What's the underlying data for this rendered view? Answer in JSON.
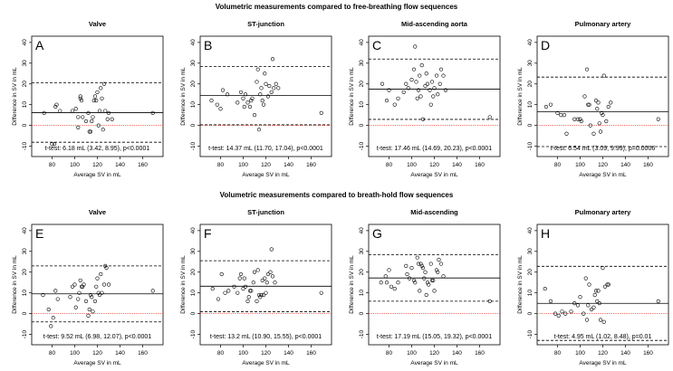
{
  "sections": [
    {
      "title": "Volumetric measurements compared to free-breathing flow sequences"
    },
    {
      "title": "Volumetric measurements compared to breath-hold flow sequences"
    }
  ],
  "chart_data": [
    {
      "type": "scatter",
      "panel": "A",
      "title": "Valve",
      "xlabel": "Average SV in mL",
      "ylabel": "Difference in SV in mL",
      "xlim": [
        62,
        178
      ],
      "ylim": [
        -15,
        43
      ],
      "xticks": [
        80,
        100,
        120,
        140,
        160
      ],
      "yticks": [
        -10,
        0,
        10,
        20,
        30,
        40
      ],
      "mean": 6.18,
      "upper_loa": 20.5,
      "lower_loa": -8.1,
      "zero_line": 0,
      "stat_text": "t-test: 6.18 mL (3.42, 8.95), p<0.0001",
      "points": [
        [
          73,
          6
        ],
        [
          80,
          -9
        ],
        [
          82,
          -9
        ],
        [
          83,
          9
        ],
        [
          84,
          10
        ],
        [
          87,
          7
        ],
        [
          98,
          7
        ],
        [
          101,
          8
        ],
        [
          103,
          4
        ],
        [
          103,
          -1
        ],
        [
          105,
          13
        ],
        [
          105,
          14
        ],
        [
          106,
          12
        ],
        [
          107,
          4
        ],
        [
          110,
          2
        ],
        [
          112,
          6
        ],
        [
          113,
          -3
        ],
        [
          114,
          -3
        ],
        [
          115,
          2
        ],
        [
          116,
          4
        ],
        [
          117,
          12
        ],
        [
          118,
          14
        ],
        [
          119,
          12
        ],
        [
          120,
          16
        ],
        [
          121,
          0
        ],
        [
          122,
          7
        ],
        [
          123,
          18
        ],
        [
          124,
          13
        ],
        [
          125,
          -2
        ],
        [
          126,
          20
        ],
        [
          127,
          7
        ],
        [
          129,
          3
        ],
        [
          130,
          6
        ],
        [
          133,
          3
        ],
        [
          169,
          6
        ]
      ]
    },
    {
      "type": "scatter",
      "panel": "B",
      "title": "ST-junction",
      "xlabel": "Average SV in mL",
      "ylabel": "Difference in SV in mL",
      "xlim": [
        62,
        178
      ],
      "ylim": [
        -15,
        43
      ],
      "xticks": [
        80,
        100,
        120,
        140,
        160
      ],
      "yticks": [
        -10,
        0,
        10,
        20,
        30,
        40
      ],
      "mean": 14.37,
      "upper_loa": 28.4,
      "lower_loa": 0.3,
      "zero_line": 0,
      "stat_text": "t-test: 14.37 mL (11.70, 17.04), p<0.0001",
      "points": [
        [
          72,
          12
        ],
        [
          77,
          10
        ],
        [
          80,
          8
        ],
        [
          82,
          17
        ],
        [
          86,
          15
        ],
        [
          95,
          11
        ],
        [
          98,
          16
        ],
        [
          100,
          13
        ],
        [
          101,
          9
        ],
        [
          102,
          15
        ],
        [
          104,
          11
        ],
        [
          106,
          9
        ],
        [
          107,
          12
        ],
        [
          108,
          13
        ],
        [
          110,
          5
        ],
        [
          112,
          21
        ],
        [
          113,
          27
        ],
        [
          114,
          -2
        ],
        [
          115,
          15
        ],
        [
          116,
          18
        ],
        [
          117,
          12
        ],
        [
          118,
          10
        ],
        [
          119,
          25
        ],
        [
          120,
          20
        ],
        [
          122,
          14
        ],
        [
          123,
          19
        ],
        [
          125,
          16
        ],
        [
          126,
          32
        ],
        [
          127,
          18
        ],
        [
          129,
          20
        ],
        [
          131,
          18
        ],
        [
          169,
          6
        ]
      ]
    },
    {
      "type": "scatter",
      "panel": "C",
      "title": "Mid-ascending aorta",
      "xlabel": "Average SV in mL",
      "ylabel": "Difference in SV in mL",
      "xlim": [
        62,
        178
      ],
      "ylim": [
        -15,
        43
      ],
      "xticks": [
        80,
        100,
        120,
        140,
        160
      ],
      "yticks": [
        -10,
        0,
        10,
        20,
        30,
        40
      ],
      "mean": 17.46,
      "upper_loa": 32,
      "lower_loa": 2.9,
      "zero_line": 0,
      "stat_text": "t-test: 17.46 mL (14.69, 20.23), p<0.0001",
      "points": [
        [
          74,
          20
        ],
        [
          78,
          12
        ],
        [
          80,
          17
        ],
        [
          85,
          10
        ],
        [
          88,
          13
        ],
        [
          93,
          16
        ],
        [
          95,
          20
        ],
        [
          97,
          18
        ],
        [
          100,
          22
        ],
        [
          102,
          27
        ],
        [
          103,
          38
        ],
        [
          104,
          21
        ],
        [
          105,
          13
        ],
        [
          106,
          17
        ],
        [
          107,
          24
        ],
        [
          108,
          14
        ],
        [
          109,
          29
        ],
        [
          110,
          3
        ],
        [
          112,
          19
        ],
        [
          113,
          25
        ],
        [
          114,
          20
        ],
        [
          116,
          17
        ],
        [
          117,
          10
        ],
        [
          118,
          21
        ],
        [
          119,
          14
        ],
        [
          120,
          18
        ],
        [
          122,
          24
        ],
        [
          123,
          15
        ],
        [
          125,
          20
        ],
        [
          126,
          27
        ],
        [
          128,
          24
        ],
        [
          130,
          17
        ],
        [
          169,
          4
        ]
      ]
    },
    {
      "type": "scatter",
      "panel": "D",
      "title": "Pulmonary artery",
      "xlabel": "Average SV in mL",
      "ylabel": "Difference in SV in mL",
      "xlim": [
        62,
        178
      ],
      "ylim": [
        -15,
        43
      ],
      "xticks": [
        80,
        100,
        120,
        140,
        160
      ],
      "yticks": [
        -10,
        0,
        10,
        20,
        30,
        40
      ],
      "mean": 6.54,
      "upper_loa": 23.3,
      "lower_loa": -10.2,
      "zero_line": 0,
      "stat_text": "t-test: 6.54 mL (3.09, 9.99), p=0.0006",
      "points": [
        [
          70,
          9
        ],
        [
          74,
          10
        ],
        [
          80,
          6
        ],
        [
          83,
          5
        ],
        [
          86,
          5
        ],
        [
          88,
          -4
        ],
        [
          95,
          3
        ],
        [
          98,
          3
        ],
        [
          100,
          3
        ],
        [
          101,
          2
        ],
        [
          104,
          14
        ],
        [
          106,
          27
        ],
        [
          107,
          10
        ],
        [
          108,
          10
        ],
        [
          109,
          0
        ],
        [
          112,
          -4
        ],
        [
          114,
          12
        ],
        [
          115,
          8
        ],
        [
          116,
          11
        ],
        [
          117,
          1
        ],
        [
          118,
          -3
        ],
        [
          119,
          6
        ],
        [
          120,
          5
        ],
        [
          121,
          24
        ],
        [
          123,
          2
        ],
        [
          125,
          9
        ],
        [
          127,
          11
        ],
        [
          169,
          3
        ]
      ]
    },
    {
      "type": "scatter",
      "panel": "E",
      "title": "Valve",
      "xlabel": "Average SV in mL",
      "ylabel": "Difference in SV in mL",
      "xlim": [
        62,
        178
      ],
      "ylim": [
        -15,
        43
      ],
      "xticks": [
        80,
        100,
        120,
        140,
        160
      ],
      "yticks": [
        -10,
        0,
        10,
        20,
        30,
        40
      ],
      "mean": 9.52,
      "upper_loa": 23,
      "lower_loa": -4,
      "zero_line": 0,
      "stat_text": "t-test: 9.52 mL (6.98, 12.07), p<0.0001",
      "points": [
        [
          72,
          9
        ],
        [
          77,
          2
        ],
        [
          79,
          -6
        ],
        [
          81,
          -2
        ],
        [
          83,
          11
        ],
        [
          85,
          7
        ],
        [
          96,
          8
        ],
        [
          98,
          13
        ],
        [
          100,
          14
        ],
        [
          101,
          3
        ],
        [
          103,
          7
        ],
        [
          104,
          10
        ],
        [
          105,
          16
        ],
        [
          106,
          13
        ],
        [
          107,
          13
        ],
        [
          108,
          14
        ],
        [
          110,
          6
        ],
        [
          112,
          -1
        ],
        [
          113,
          2
        ],
        [
          114,
          9
        ],
        [
          115,
          8
        ],
        [
          116,
          1
        ],
        [
          118,
          6
        ],
        [
          119,
          13
        ],
        [
          120,
          17
        ],
        [
          121,
          10
        ],
        [
          122,
          9
        ],
        [
          123,
          19
        ],
        [
          124,
          10
        ],
        [
          126,
          14
        ],
        [
          127,
          23
        ],
        [
          128,
          22
        ],
        [
          130,
          14
        ],
        [
          169,
          11
        ]
      ]
    },
    {
      "type": "scatter",
      "panel": "F",
      "title": "ST-junction",
      "xlabel": "Average SV in mL",
      "ylabel": "Difference in SV in mL",
      "xlim": [
        62,
        178
      ],
      "ylim": [
        -15,
        43
      ],
      "xticks": [
        80,
        100,
        120,
        140,
        160
      ],
      "yticks": [
        -10,
        0,
        10,
        20,
        30,
        40
      ],
      "mean": 13.2,
      "upper_loa": 25.5,
      "lower_loa": 0.9,
      "zero_line": 0,
      "stat_text": "t-test: 13.2 mL (10.90, 15.55), p<0.0001",
      "points": [
        [
          73,
          12
        ],
        [
          78,
          7
        ],
        [
          81,
          19
        ],
        [
          84,
          10
        ],
        [
          87,
          11
        ],
        [
          92,
          13
        ],
        [
          95,
          10
        ],
        [
          97,
          17
        ],
        [
          98,
          19
        ],
        [
          100,
          12
        ],
        [
          101,
          17
        ],
        [
          102,
          13
        ],
        [
          104,
          6
        ],
        [
          105,
          8
        ],
        [
          106,
          11
        ],
        [
          107,
          11
        ],
        [
          109,
          15
        ],
        [
          110,
          20
        ],
        [
          112,
          6
        ],
        [
          113,
          21
        ],
        [
          114,
          9
        ],
        [
          115,
          8
        ],
        [
          116,
          9
        ],
        [
          117,
          16
        ],
        [
          118,
          9
        ],
        [
          119,
          17
        ],
        [
          120,
          10
        ],
        [
          121,
          15
        ],
        [
          122,
          19
        ],
        [
          124,
          20
        ],
        [
          125,
          31
        ],
        [
          126,
          18
        ],
        [
          128,
          15
        ],
        [
          169,
          10
        ]
      ]
    },
    {
      "type": "scatter",
      "panel": "G",
      "title": "Mid-ascending",
      "xlabel": "Average SV in mL",
      "ylabel": "Difference in SV in mL",
      "xlim": [
        62,
        178
      ],
      "ylim": [
        -15,
        43
      ],
      "xticks": [
        80,
        100,
        120,
        140,
        160
      ],
      "yticks": [
        -10,
        0,
        10,
        20,
        30,
        40
      ],
      "mean": 17.19,
      "upper_loa": 28.4,
      "lower_loa": 6,
      "zero_line": 0,
      "stat_text": "t-test: 17.19 mL (15.05, 19.32), p<0.0001",
      "points": [
        [
          73,
          15
        ],
        [
          77,
          18
        ],
        [
          78,
          15
        ],
        [
          80,
          21
        ],
        [
          82,
          13
        ],
        [
          85,
          12
        ],
        [
          88,
          15
        ],
        [
          95,
          23
        ],
        [
          96,
          19
        ],
        [
          98,
          17
        ],
        [
          100,
          22
        ],
        [
          102,
          16
        ],
        [
          103,
          15
        ],
        [
          105,
          27
        ],
        [
          106,
          24
        ],
        [
          107,
          11
        ],
        [
          108,
          24
        ],
        [
          109,
          23
        ],
        [
          110,
          22
        ],
        [
          111,
          17
        ],
        [
          112,
          20
        ],
        [
          113,
          9
        ],
        [
          114,
          15
        ],
        [
          115,
          14
        ],
        [
          117,
          24
        ],
        [
          118,
          16
        ],
        [
          119,
          16
        ],
        [
          120,
          11
        ],
        [
          122,
          21
        ],
        [
          123,
          20
        ],
        [
          124,
          26
        ],
        [
          126,
          24
        ],
        [
          128,
          18
        ],
        [
          169,
          6
        ]
      ]
    },
    {
      "type": "scatter",
      "panel": "H",
      "title": "Pulmonary artery",
      "xlabel": "Average SV in mL",
      "ylabel": "Difference in SV in mL",
      "xlim": [
        62,
        178
      ],
      "ylim": [
        -15,
        43
      ],
      "xticks": [
        80,
        100,
        120,
        140,
        160
      ],
      "yticks": [
        -10,
        0,
        10,
        20,
        30,
        40
      ],
      "mean": 4.95,
      "upper_loa": 22.8,
      "lower_loa": -12.9,
      "zero_line": 0,
      "stat_text": "t-test: 4.95 mL (1.02, 8.48), p=0.01",
      "points": [
        [
          69,
          12
        ],
        [
          74,
          6
        ],
        [
          78,
          0
        ],
        [
          81,
          -1
        ],
        [
          84,
          1
        ],
        [
          87,
          0
        ],
        [
          92,
          1
        ],
        [
          95,
          5
        ],
        [
          98,
          4
        ],
        [
          100,
          8
        ],
        [
          103,
          0
        ],
        [
          105,
          17
        ],
        [
          106,
          -3
        ],
        [
          107,
          4
        ],
        [
          108,
          14
        ],
        [
          110,
          2
        ],
        [
          112,
          3
        ],
        [
          113,
          9
        ],
        [
          114,
          11
        ],
        [
          115,
          6
        ],
        [
          116,
          11
        ],
        [
          117,
          5
        ],
        [
          118,
          -3
        ],
        [
          120,
          22
        ],
        [
          121,
          -4
        ],
        [
          122,
          13
        ],
        [
          124,
          14
        ],
        [
          125,
          14
        ],
        [
          169,
          6
        ]
      ]
    }
  ]
}
